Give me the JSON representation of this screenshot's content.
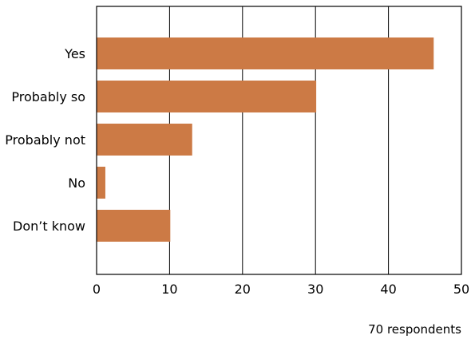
{
  "chart_data": {
    "type": "bar",
    "orientation": "horizontal",
    "categories": [
      "Yes",
      "Probably so",
      "Probably not",
      "No",
      "Don’t know"
    ],
    "values": [
      46.2,
      30.1,
      13.1,
      1.2,
      10.1
    ],
    "xlim": [
      0,
      50
    ],
    "xticks": [
      0,
      10,
      20,
      30,
      40,
      50
    ],
    "grid": true,
    "legend": "none",
    "bar_color": "#cc7a45",
    "annotation": "70 respondents"
  }
}
